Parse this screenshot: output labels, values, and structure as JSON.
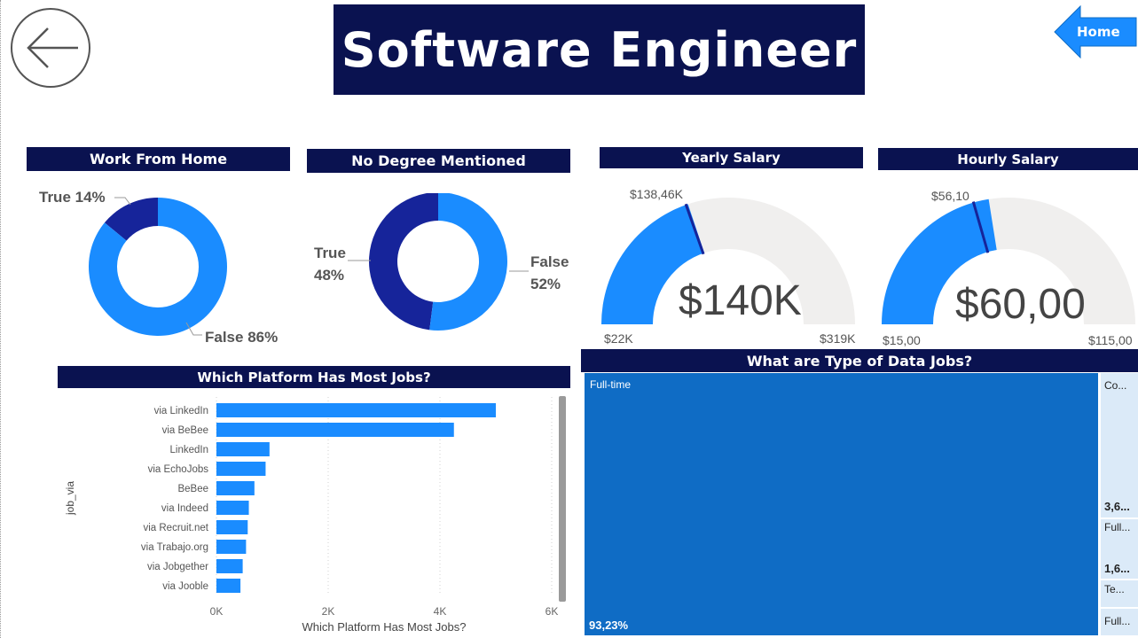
{
  "page": {
    "title": "Software Engineer",
    "home_label": "Home",
    "colors": {
      "navy": "#0a1250",
      "primary": "#1a8cff",
      "dark_blue": "#16249a",
      "treemap": "#0f6cc5",
      "track": "#f0efee"
    }
  },
  "icons": {
    "back": "arrow-left-icon",
    "home": "home-arrow-icon"
  },
  "wfh": {
    "header": "Work From Home",
    "true_label": "True 14%",
    "false_label": "False 86%"
  },
  "degree": {
    "header": "No Degree Mentioned",
    "true_label1": "True",
    "true_label2": "48%",
    "false_label1": "False",
    "false_label2": "52%"
  },
  "yearly": {
    "header": "Yearly Salary",
    "value": "$140K",
    "target": "$138,46K",
    "min": "$22K",
    "max": "$319K"
  },
  "hourly": {
    "header": "Hourly Salary",
    "value": "$60,00",
    "target": "$56,10",
    "min": "$15,00",
    "max": "$115,00"
  },
  "platform": {
    "header": "Which Platform Has Most Jobs?",
    "ylabel": "job_via",
    "xlabel": "Which Platform Has Most Jobs?",
    "ticks": [
      "0K",
      "2K",
      "4K",
      "6K"
    ]
  },
  "treemap": {
    "header": "What are Type of Data Jobs?",
    "main_label": "Full-time",
    "main_pct": "93,23%",
    "side1_label": "Co...",
    "side1_value": "3,6...",
    "side2_label": "Full...",
    "side2_value": "1,6...",
    "side3_label": "Te...",
    "side4_label": "Full..."
  },
  "chart_data": [
    {
      "type": "pie",
      "title": "Work From Home",
      "categories": [
        "True",
        "False"
      ],
      "values": [
        14,
        86
      ],
      "colors": [
        "#16249a",
        "#1a8cff"
      ]
    },
    {
      "type": "pie",
      "title": "No Degree Mentioned",
      "categories": [
        "True",
        "False"
      ],
      "values": [
        48,
        52
      ],
      "colors": [
        "#16249a",
        "#1a8cff"
      ]
    },
    {
      "type": "gauge",
      "title": "Yearly Salary",
      "value": 140000,
      "target": 138460,
      "min": 22000,
      "max": 319000
    },
    {
      "type": "gauge",
      "title": "Hourly Salary",
      "value": 60,
      "target": 56.1,
      "min": 15,
      "max": 115
    },
    {
      "type": "bar",
      "orientation": "horizontal",
      "title": "Which Platform Has Most Jobs?",
      "xlabel": "Which Platform Has Most Jobs?",
      "ylabel": "job_via",
      "categories": [
        "via LinkedIn",
        "via BeBee",
        "LinkedIn",
        "via EchoJobs",
        "BeBee",
        "via Indeed",
        "via Recruit.net",
        "via Trabajo.org",
        "via Jobgether",
        "via Jooble"
      ],
      "values": [
        5000,
        4250,
        950,
        880,
        680,
        580,
        560,
        530,
        470,
        430
      ],
      "xlim": [
        0,
        6000
      ],
      "grid": true
    },
    {
      "type": "treemap",
      "title": "What are Type of Data Jobs?",
      "categories": [
        "Full-time",
        "Co...",
        "Full...",
        "Te...",
        "Full..."
      ],
      "values": [
        93.23,
        3.6,
        1.6,
        1.0,
        0.6
      ]
    }
  ]
}
